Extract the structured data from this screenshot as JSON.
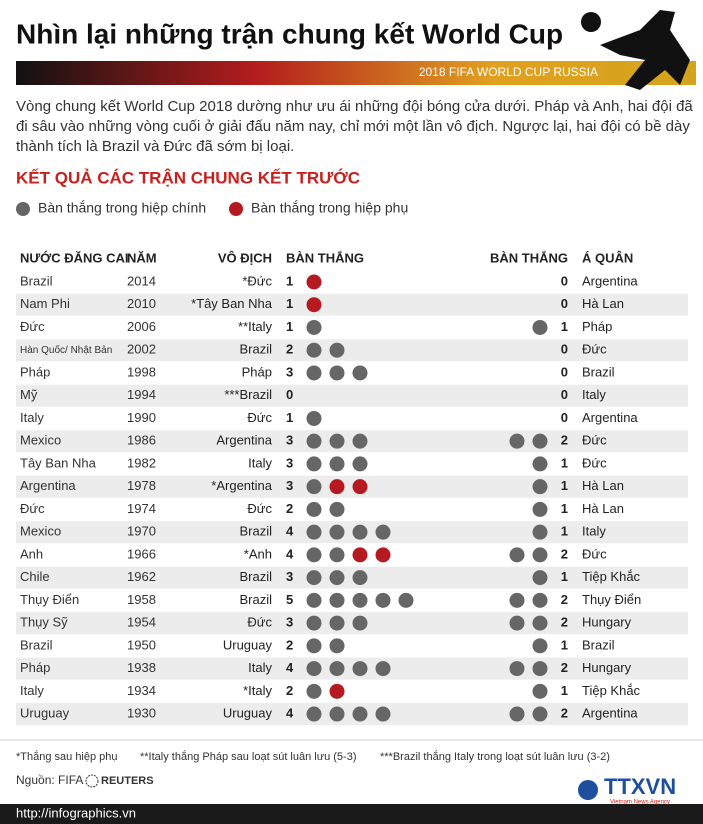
{
  "header": {
    "title": "Nhìn lại những trận chung kết World Cup",
    "banner": "2018 FIFA WORLD CUP RUSSIA"
  },
  "intro": "Vòng chung kết World Cup 2018 dường như ưu ái những đội bóng cửa dưới. Pháp và Anh, hai đội đã đi sâu vào những vòng cuối ở giải đấu năm nay, chỉ mới một lần vô địch. Ngược lại, hai đội có bề dày thành tích là Brazil và Đức đã sớm bị loại.",
  "section_title": "KẾT QUẢ CÁC TRẬN CHUNG KẾT TRƯỚC",
  "legend": {
    "regular": "Bàn thắng trong hiệp chính",
    "extra_time": "Bàn thắng trong hiệp phụ"
  },
  "table": {
    "columns": [
      "NƯỚC ĐĂNG CAI",
      "NĂM",
      "VÔ ĐỊCH",
      "BÀN THẮNG",
      "BÀN THẮNG",
      "Á QUÂN"
    ],
    "rows": [
      {
        "host": "Brazil",
        "year": 2014,
        "champion": "*Đức",
        "champion_goals": 1,
        "champion_extra_time_goals": 1,
        "runner_up_goals": 0,
        "runner_up": "Argentina"
      },
      {
        "host": "Nam Phi",
        "year": 2010,
        "champion": "*Tây Ban Nha",
        "champion_goals": 1,
        "champion_extra_time_goals": 1,
        "runner_up_goals": 0,
        "runner_up": "Hà Lan"
      },
      {
        "host": "Đức",
        "year": 2006,
        "champion": "**Italy",
        "champion_goals": 1,
        "champion_extra_time_goals": 0,
        "runner_up_goals": 1,
        "runner_up": "Pháp"
      },
      {
        "host": "Hàn Quốc/ Nhật Bản",
        "year": 2002,
        "champion": "Brazil",
        "champion_goals": 2,
        "champion_extra_time_goals": 0,
        "runner_up_goals": 0,
        "runner_up": "Đức"
      },
      {
        "host": "Pháp",
        "year": 1998,
        "champion": "Pháp",
        "champion_goals": 3,
        "champion_extra_time_goals": 0,
        "runner_up_goals": 0,
        "runner_up": "Brazil"
      },
      {
        "host": "Mỹ",
        "year": 1994,
        "champion": "***Brazil",
        "champion_goals": 0,
        "champion_extra_time_goals": 0,
        "runner_up_goals": 0,
        "runner_up": "Italy"
      },
      {
        "host": "Italy",
        "year": 1990,
        "champion": "Đức",
        "champion_goals": 1,
        "champion_extra_time_goals": 0,
        "runner_up_goals": 0,
        "runner_up": "Argentina"
      },
      {
        "host": "Mexico",
        "year": 1986,
        "champion": "Argentina",
        "champion_goals": 3,
        "champion_extra_time_goals": 0,
        "runner_up_goals": 2,
        "runner_up": "Đức"
      },
      {
        "host": "Tây Ban Nha",
        "year": 1982,
        "champion": "Italy",
        "champion_goals": 3,
        "champion_extra_time_goals": 0,
        "runner_up_goals": 1,
        "runner_up": "Đức"
      },
      {
        "host": "Argentina",
        "year": 1978,
        "champion": "*Argentina",
        "champion_goals": 3,
        "champion_extra_time_goals": 2,
        "runner_up_goals": 1,
        "runner_up": "Hà Lan"
      },
      {
        "host": "Đức",
        "year": 1974,
        "champion": "Đức",
        "champion_goals": 2,
        "champion_extra_time_goals": 0,
        "runner_up_goals": 1,
        "runner_up": "Hà Lan"
      },
      {
        "host": "Mexico",
        "year": 1970,
        "champion": "Brazil",
        "champion_goals": 4,
        "champion_extra_time_goals": 0,
        "runner_up_goals": 1,
        "runner_up": "Italy"
      },
      {
        "host": "Anh",
        "year": 1966,
        "champion": "*Anh",
        "champion_goals": 4,
        "champion_extra_time_goals": 2,
        "runner_up_goals": 2,
        "runner_up": "Đức"
      },
      {
        "host": "Chile",
        "year": 1962,
        "champion": "Brazil",
        "champion_goals": 3,
        "champion_extra_time_goals": 0,
        "runner_up_goals": 1,
        "runner_up": "Tiệp Khắc"
      },
      {
        "host": "Thụy Điển",
        "year": 1958,
        "champion": "Brazil",
        "champion_goals": 5,
        "champion_extra_time_goals": 0,
        "runner_up_goals": 2,
        "runner_up": "Thụy Điển"
      },
      {
        "host": "Thụy Sỹ",
        "year": 1954,
        "champion": "Đức",
        "champion_goals": 3,
        "champion_extra_time_goals": 0,
        "runner_up_goals": 2,
        "runner_up": "Hungary"
      },
      {
        "host": "Brazil",
        "year": 1950,
        "champion": "Uruguay",
        "champion_goals": 2,
        "champion_extra_time_goals": 0,
        "runner_up_goals": 1,
        "runner_up": "Brazil"
      },
      {
        "host": "Pháp",
        "year": 1938,
        "champion": "Italy",
        "champion_goals": 4,
        "champion_extra_time_goals": 0,
        "runner_up_goals": 2,
        "runner_up": "Hungary"
      },
      {
        "host": "Italy",
        "year": 1934,
        "champion": "*Italy",
        "champion_goals": 2,
        "champion_extra_time_goals": 1,
        "runner_up_goals": 1,
        "runner_up": "Tiệp Khắc"
      },
      {
        "host": "Uruguay",
        "year": 1930,
        "champion": "Uruguay",
        "champion_goals": 4,
        "champion_extra_time_goals": 0,
        "runner_up_goals": 2,
        "runner_up": "Argentina"
      }
    ]
  },
  "footnotes": [
    "*Thắng sau hiệp phụ",
    "**Italy thắng Pháp sau loạt sút luân lưu (5-3)",
    "***Brazil thắng Italy trong loạt sút luân lưu (3-2)"
  ],
  "source": "Nguồn: FIFA",
  "source_logo": "REUTERS",
  "footer": {
    "url": "http://infographics.vn",
    "agency": "TTXVN",
    "agency_sub": "Vietnam News Agency"
  }
}
